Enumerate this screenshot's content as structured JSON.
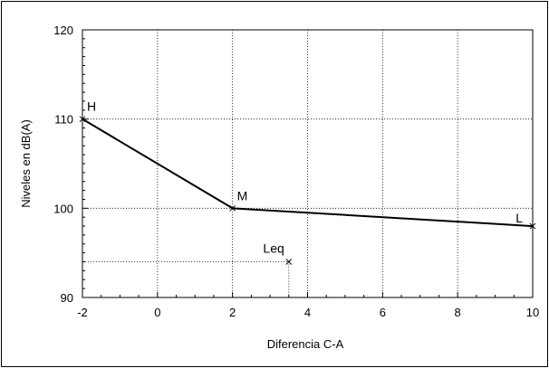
{
  "chart_data": {
    "type": "line",
    "xlabel": "Diferencia C-A",
    "ylabel": "Niveles en dB(A)",
    "xlim": [
      -2,
      10
    ],
    "ylim": [
      90,
      120
    ],
    "xticks": [
      -2,
      0,
      2,
      4,
      6,
      8,
      10
    ],
    "yticks": [
      90,
      100,
      110,
      120
    ],
    "grid": true,
    "legend": "none",
    "series": [
      {
        "points": [
          {
            "x": -2,
            "y": 110,
            "label": "H"
          },
          {
            "x": 2,
            "y": 100,
            "label": "M"
          },
          {
            "x": 10,
            "y": 98,
            "label": "L"
          }
        ]
      }
    ],
    "annotations": [
      {
        "x": 3.5,
        "y": 94,
        "label": "Leq",
        "guides": true
      }
    ],
    "colors": {
      "line": "#000000",
      "grid": "#000000",
      "frame": "#000000",
      "background": "#ffffff"
    }
  }
}
